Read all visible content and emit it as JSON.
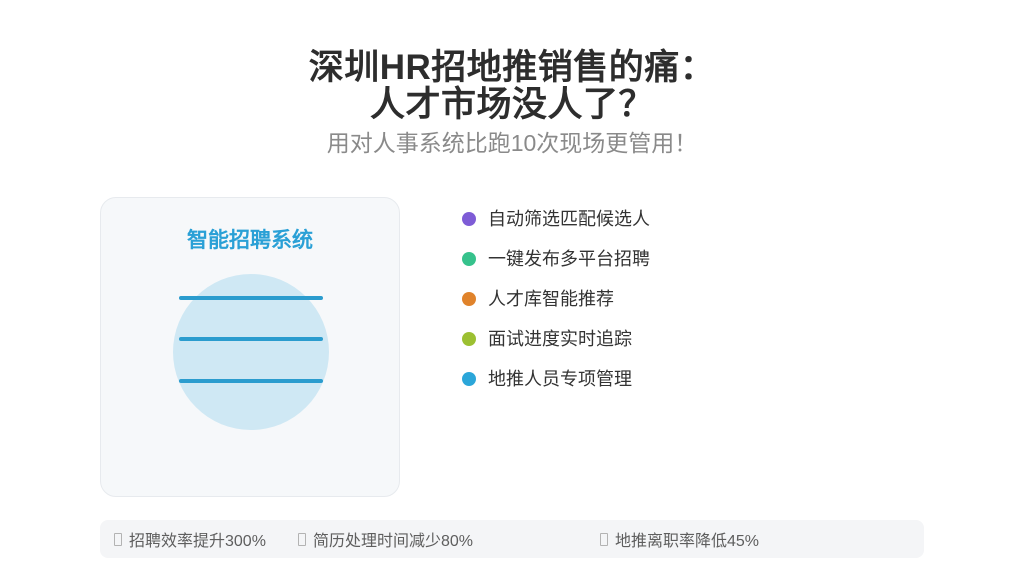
{
  "header": {
    "title_line1": "深圳HR招地推销售的痛：",
    "title_line2": "人才市场没人了？",
    "subtitle": "用对人事系统比跑10次现场更管用！"
  },
  "card": {
    "title": "智能招聘系统",
    "illustration": "document-circle-with-lines"
  },
  "features": [
    {
      "label": "自动筛选匹配候选人",
      "dot_color": "#7e5cd6"
    },
    {
      "label": "一键发布多平台招聘",
      "dot_color": "#36c28c"
    },
    {
      "label": "人才库智能推荐",
      "dot_color": "#e0832b"
    },
    {
      "label": "面试进度实时追踪",
      "dot_color": "#9cc032"
    },
    {
      "label": "地推人员专项管理",
      "dot_color": "#2ba6d9"
    }
  ],
  "stats": [
    {
      "icon": "missing-glyph-box",
      "label": "招聘效率提升300%"
    },
    {
      "icon": "missing-glyph-box",
      "label": "简历处理时间减少80%"
    },
    {
      "icon": "missing-glyph-box",
      "label": "地推离职率降低45%"
    }
  ],
  "colors": {
    "accent_blue": "#2aa0d6",
    "circle_fill": "#cfe8f4",
    "rule_line": "#2b9cce",
    "title_text": "#2d2d2d",
    "subtitle_text": "#8a8a8a",
    "body_text": "#333333",
    "stat_text": "#5e5e5e",
    "card_bg": "#f6f8fa",
    "bar_bg": "#f4f5f7"
  }
}
